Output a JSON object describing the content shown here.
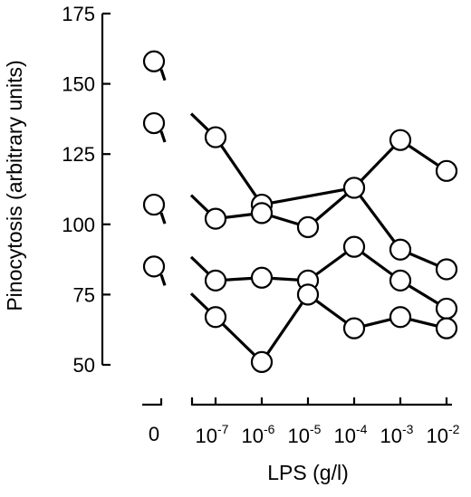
{
  "chart_data": {
    "type": "line",
    "ylabel": "Pinocytosis (arbitrary units)",
    "xlabel": "LPS (g/l)",
    "ylim": [
      50,
      175
    ],
    "yticks": [
      50,
      75,
      100,
      125,
      150,
      175
    ],
    "grid": false,
    "control": {
      "tick_label": "0",
      "values": [
        158,
        136,
        107,
        85
      ]
    },
    "x_ticks": [
      {
        "base": "10",
        "exp": "-7"
      },
      {
        "base": "10",
        "exp": "-6"
      },
      {
        "base": "10",
        "exp": "-5"
      },
      {
        "base": "10",
        "exp": "-4"
      },
      {
        "base": "10",
        "exp": "-3"
      },
      {
        "base": "10",
        "exp": "-2"
      }
    ],
    "x_log10": [
      -7,
      -6,
      -5,
      -4,
      -3,
      -2
    ],
    "series": [
      {
        "values": [
          131,
          107,
          null,
          113,
          130,
          119
        ]
      },
      {
        "values": [
          102,
          104,
          99,
          113,
          91,
          84
        ]
      },
      {
        "values": [
          80,
          81,
          80,
          92,
          80,
          70
        ]
      },
      {
        "values": [
          67,
          51,
          75,
          63,
          67,
          63
        ]
      }
    ]
  }
}
